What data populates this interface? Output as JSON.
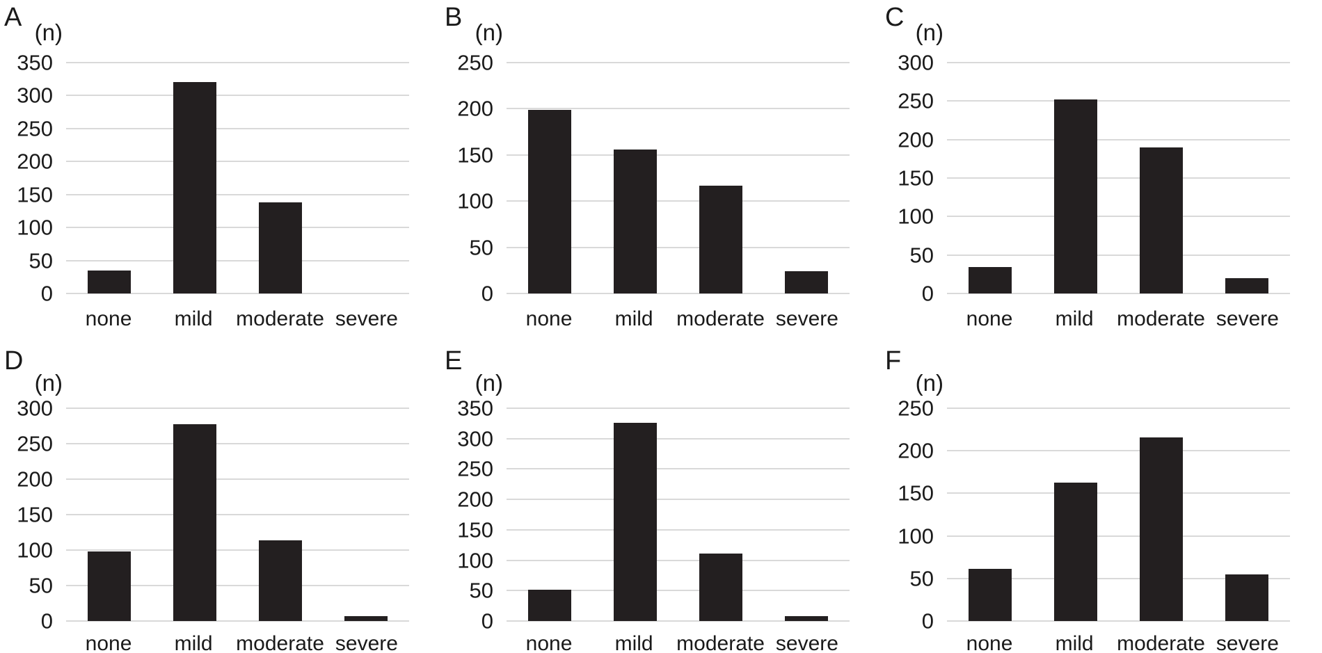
{
  "figure": {
    "background_color": "#ffffff",
    "bar_color": "#231f20",
    "gridline_color": "#d9d9d9",
    "text_color": "#1a1a1a"
  },
  "chart_data": [
    {
      "type": "bar",
      "panel": "A",
      "axis_label": "(n)",
      "categories": [
        "none",
        "mild",
        "moderate",
        "severe"
      ],
      "values": [
        35,
        321,
        138,
        0
      ],
      "ylim": [
        0,
        350
      ],
      "ytick_step": 50,
      "yticks": [
        0,
        50,
        100,
        150,
        200,
        250,
        300,
        350
      ],
      "grid": true,
      "legend": false
    },
    {
      "type": "bar",
      "panel": "B",
      "axis_label": "(n)",
      "categories": [
        "none",
        "mild",
        "moderate",
        "severe"
      ],
      "values": [
        199,
        156,
        117,
        24
      ],
      "ylim": [
        0,
        250
      ],
      "ytick_step": 50,
      "yticks": [
        0,
        50,
        100,
        150,
        200,
        250
      ],
      "grid": true,
      "legend": false
    },
    {
      "type": "bar",
      "panel": "C",
      "axis_label": "(n)",
      "categories": [
        "none",
        "mild",
        "moderate",
        "severe"
      ],
      "values": [
        34,
        252,
        190,
        20
      ],
      "ylim": [
        0,
        300
      ],
      "ytick_step": 50,
      "yticks": [
        0,
        50,
        100,
        150,
        200,
        250,
        300
      ],
      "grid": true,
      "legend": false
    },
    {
      "type": "bar",
      "panel": "D",
      "axis_label": "(n)",
      "categories": [
        "none",
        "mild",
        "moderate",
        "severe"
      ],
      "values": [
        98,
        277,
        114,
        7
      ],
      "ylim": [
        0,
        300
      ],
      "ytick_step": 50,
      "yticks": [
        0,
        50,
        100,
        150,
        200,
        250,
        300
      ],
      "grid": true,
      "legend": false
    },
    {
      "type": "bar",
      "panel": "E",
      "axis_label": "(n)",
      "categories": [
        "none",
        "mild",
        "moderate",
        "severe"
      ],
      "values": [
        51,
        326,
        111,
        8
      ],
      "ylim": [
        0,
        350
      ],
      "ytick_step": 50,
      "yticks": [
        0,
        50,
        100,
        150,
        200,
        250,
        300,
        350
      ],
      "grid": true,
      "legend": false
    },
    {
      "type": "bar",
      "panel": "F",
      "axis_label": "(n)",
      "categories": [
        "none",
        "mild",
        "moderate",
        "severe"
      ],
      "values": [
        61,
        163,
        216,
        55
      ],
      "ylim": [
        0,
        250
      ],
      "ytick_step": 50,
      "yticks": [
        0,
        50,
        100,
        150,
        200,
        250
      ],
      "grid": true,
      "legend": false
    }
  ]
}
